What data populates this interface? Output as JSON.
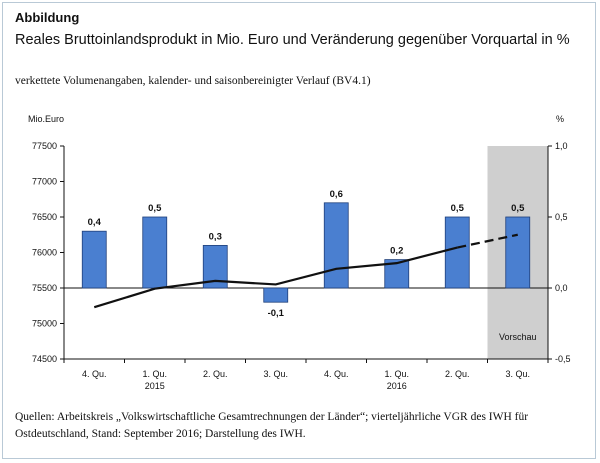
{
  "figure_label": "Abbildung",
  "title": "Reales Bruttoinlandsprodukt in Mio. Euro und Veränderung gegenüber Vorquartal in %",
  "subtitle": "verkettete Volumenangaben, kalender- und saisonbereinigter Verlauf (BV4.1)",
  "footer": "Quellen: Arbeitskreis „Volkswirtschaftliche Gesamtrechnungen der Länder“; vierteljährliche VGR des IWH für Ostdeutschland, Stand: September 2016; Darstellung des IWH.",
  "chart_data": {
    "type": "bar+line",
    "categories": [
      {
        "quarter": "4. Qu.",
        "year": ""
      },
      {
        "quarter": "1. Qu.",
        "year": "2015"
      },
      {
        "quarter": "2. Qu.",
        "year": ""
      },
      {
        "quarter": "3. Qu.",
        "year": ""
      },
      {
        "quarter": "4. Qu.",
        "year": ""
      },
      {
        "quarter": "1. Qu.",
        "year": "2016"
      },
      {
        "quarter": "2. Qu.",
        "year": ""
      },
      {
        "quarter": "3. Qu.",
        "year": ""
      }
    ],
    "bars": {
      "axis": "right",
      "values": [
        0.4,
        0.5,
        0.3,
        -0.1,
        0.6,
        0.2,
        0.5,
        0.5
      ],
      "labels": [
        "0,4",
        "0,5",
        "0,3",
        "-0,1",
        "0,6",
        "0,2",
        "0,5",
        "0,5"
      ],
      "color": "#4a7fd0"
    },
    "line": {
      "axis": "left",
      "values": [
        75230,
        75490,
        75600,
        75550,
        75770,
        75850,
        76070,
        76250
      ],
      "dashed_from_index": 6,
      "color": "#111111"
    },
    "left_axis": {
      "label": "Mio.Euro",
      "min": 74500,
      "max": 77500,
      "ticks": [
        "74500",
        "75000",
        "75500",
        "76000",
        "76500",
        "77000",
        "77500"
      ]
    },
    "right_axis": {
      "label": "%",
      "min": -0.5,
      "max": 1.0,
      "ticks": [
        "-0,5",
        "0,0",
        "0,5",
        "1,0"
      ]
    },
    "forecast": {
      "label": "Vorschau",
      "index": 7,
      "color": "#cfcfcf"
    }
  }
}
